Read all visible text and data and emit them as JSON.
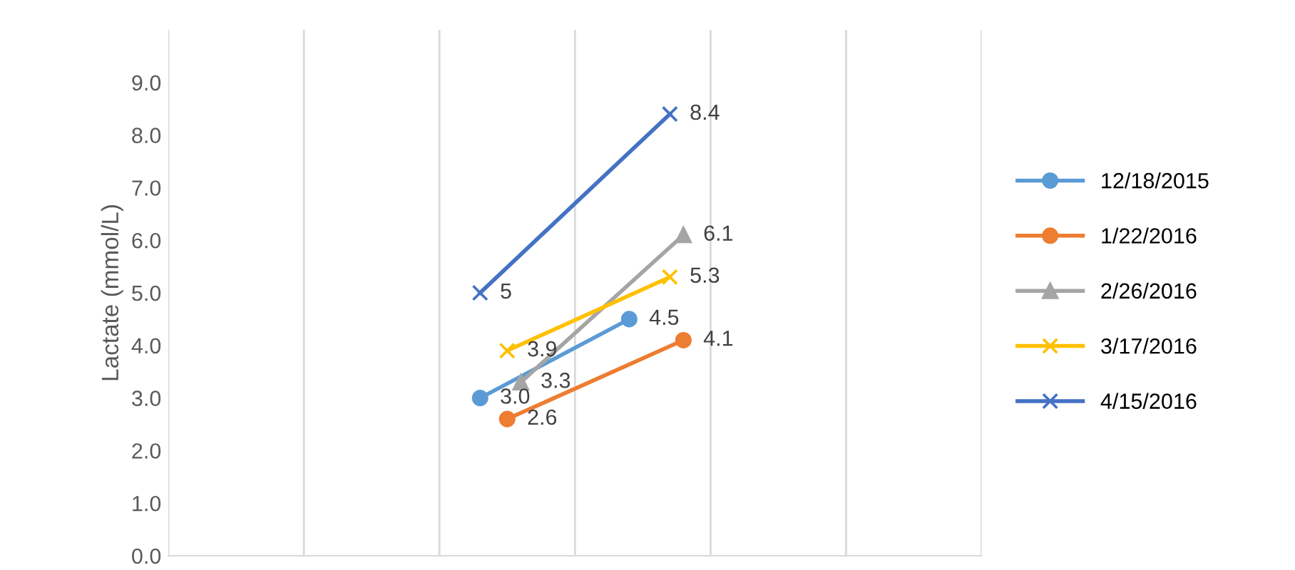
{
  "chart_data": {
    "type": "line",
    "ylabel": "Lactate (mmol/L)",
    "categories": [
      null,
      null,
      null,
      null,
      null,
      null,
      null,
      null,
      null,
      null,
      null,
      null,
      null,
      null,
      null,
      null,
      null,
      null,
      null,
      null,
      null,
      null,
      null,
      null,
      null,
      null,
      null,
      null,
      null,
      null,
      null,
      null,
      null,
      null,
      null,
      null,
      null,
      null,
      null,
      null,
      null,
      null,
      null,
      null,
      null,
      null,
      null,
      null,
      null,
      null,
      null,
      null,
      null,
      null,
      null,
      null,
      null,
      null,
      null,
      null,
      null
    ],
    "ylim": [
      0,
      10
    ],
    "yticks": [
      {
        "value": 0,
        "label": "0.0"
      },
      {
        "value": 1,
        "label": "1.0"
      },
      {
        "value": 2,
        "label": "2.0"
      },
      {
        "value": 3,
        "label": "3.0"
      },
      {
        "value": 4,
        "label": "4.0"
      },
      {
        "value": 5,
        "label": "5.0"
      },
      {
        "value": 6,
        "label": "6.0"
      },
      {
        "value": 7,
        "label": "7.0"
      },
      {
        "value": 8,
        "label": "8.0"
      },
      {
        "value": 9,
        "label": "9.0"
      }
    ],
    "grid": "x",
    "legend": "right",
    "series": [
      {
        "name": "12/18/2015",
        "color": "#5b9bd5",
        "marker": "circle",
        "values": [
          null,
          null,
          null,
          null,
          null,
          null,
          null,
          null,
          null,
          null,
          null,
          null,
          null,
          null,
          null,
          null,
          null,
          null,
          null,
          null,
          null,
          null,
          null,
          3.0,
          null,
          null,
          null,
          null,
          null,
          null,
          null,
          null,
          null,
          null,
          4.5,
          null,
          null,
          null,
          null,
          null,
          null,
          null,
          null,
          null,
          null,
          null,
          null,
          null,
          null,
          null,
          null,
          null,
          null,
          null,
          null,
          null,
          null,
          null,
          null,
          null,
          null
        ],
        "value_labels": [
          null,
          null,
          null,
          null,
          null,
          null,
          null,
          null,
          null,
          null,
          null,
          null,
          null,
          null,
          null,
          null,
          null,
          null,
          null,
          null,
          null,
          null,
          null,
          "3.0",
          null,
          null,
          null,
          null,
          null,
          null,
          null,
          null,
          null,
          null,
          "4.5",
          null,
          null,
          null,
          null,
          null,
          null,
          null,
          null,
          null,
          null,
          null,
          null,
          null,
          null,
          null,
          null,
          null,
          null,
          null,
          null,
          null,
          null,
          null,
          null,
          null,
          null
        ]
      },
      {
        "name": "1/22/2016",
        "color": "#ed7d31",
        "marker": "circle",
        "values": [
          null,
          null,
          null,
          null,
          null,
          null,
          null,
          null,
          null,
          null,
          null,
          null,
          null,
          null,
          null,
          null,
          null,
          null,
          null,
          null,
          null,
          null,
          null,
          null,
          null,
          2.6,
          null,
          null,
          null,
          null,
          null,
          null,
          null,
          null,
          null,
          null,
          null,
          null,
          4.1,
          null,
          null,
          null,
          null,
          null,
          null,
          null,
          null,
          null,
          null,
          null,
          null,
          null,
          null,
          null,
          null,
          null,
          null,
          null,
          null,
          null,
          null
        ],
        "value_labels": [
          null,
          null,
          null,
          null,
          null,
          null,
          null,
          null,
          null,
          null,
          null,
          null,
          null,
          null,
          null,
          null,
          null,
          null,
          null,
          null,
          null,
          null,
          null,
          null,
          null,
          "2.6",
          null,
          null,
          null,
          null,
          null,
          null,
          null,
          null,
          null,
          null,
          null,
          null,
          "4.1",
          null,
          null,
          null,
          null,
          null,
          null,
          null,
          null,
          null,
          null,
          null,
          null,
          null,
          null,
          null,
          null,
          null,
          null,
          null,
          null,
          null,
          null
        ]
      },
      {
        "name": "2/26/2016",
        "color": "#a5a5a5",
        "marker": "triangle",
        "values": [
          null,
          null,
          null,
          null,
          null,
          null,
          null,
          null,
          null,
          null,
          null,
          null,
          null,
          null,
          null,
          null,
          null,
          null,
          null,
          null,
          null,
          null,
          null,
          null,
          null,
          null,
          3.3,
          null,
          null,
          null,
          null,
          null,
          null,
          null,
          null,
          null,
          null,
          null,
          6.1,
          null,
          null,
          null,
          null,
          null,
          null,
          null,
          null,
          null,
          null,
          null,
          null,
          null,
          null,
          null,
          null,
          null,
          null,
          null,
          null,
          null,
          null
        ],
        "value_labels": [
          null,
          null,
          null,
          null,
          null,
          null,
          null,
          null,
          null,
          null,
          null,
          null,
          null,
          null,
          null,
          null,
          null,
          null,
          null,
          null,
          null,
          null,
          null,
          null,
          null,
          null,
          "3.3",
          null,
          null,
          null,
          null,
          null,
          null,
          null,
          null,
          null,
          null,
          null,
          "6.1",
          null,
          null,
          null,
          null,
          null,
          null,
          null,
          null,
          null,
          null,
          null,
          null,
          null,
          null,
          null,
          null,
          null,
          null,
          null,
          null,
          null,
          null
        ]
      },
      {
        "name": "3/17/2016",
        "color": "#ffc000",
        "marker": "cross",
        "values": [
          null,
          null,
          null,
          null,
          null,
          null,
          null,
          null,
          null,
          null,
          null,
          null,
          null,
          null,
          null,
          null,
          null,
          null,
          null,
          null,
          null,
          null,
          null,
          null,
          null,
          3.9,
          null,
          null,
          null,
          null,
          null,
          null,
          null,
          null,
          null,
          null,
          null,
          5.3,
          null,
          null,
          null,
          null,
          null,
          null,
          null,
          null,
          null,
          null,
          null,
          null,
          null,
          null,
          null,
          null,
          null,
          null,
          null,
          null,
          null,
          null,
          null
        ],
        "value_labels": [
          null,
          null,
          null,
          null,
          null,
          null,
          null,
          null,
          null,
          null,
          null,
          null,
          null,
          null,
          null,
          null,
          null,
          null,
          null,
          null,
          null,
          null,
          null,
          null,
          null,
          "3.9",
          null,
          null,
          null,
          null,
          null,
          null,
          null,
          null,
          null,
          null,
          null,
          "5.3",
          null,
          null,
          null,
          null,
          null,
          null,
          null,
          null,
          null,
          null,
          null,
          null,
          null,
          null,
          null,
          null,
          null,
          null,
          null,
          null,
          null,
          null,
          null
        ]
      },
      {
        "name": "4/15/2016",
        "color": "#4472c4",
        "marker": "cross",
        "values": [
          null,
          null,
          null,
          null,
          null,
          null,
          null,
          null,
          null,
          null,
          null,
          null,
          null,
          null,
          null,
          null,
          null,
          null,
          null,
          null,
          null,
          null,
          null,
          5,
          null,
          null,
          null,
          null,
          null,
          null,
          null,
          null,
          null,
          null,
          null,
          null,
          null,
          8.4,
          null,
          null,
          null,
          null,
          null,
          null,
          null,
          null,
          null,
          null,
          null,
          null,
          null,
          null,
          null,
          null,
          null,
          null,
          null,
          null,
          null,
          null,
          null
        ],
        "value_labels": [
          null,
          null,
          null,
          null,
          null,
          null,
          null,
          null,
          null,
          null,
          null,
          null,
          null,
          null,
          null,
          null,
          null,
          null,
          null,
          null,
          null,
          null,
          null,
          "5",
          null,
          null,
          null,
          null,
          null,
          null,
          null,
          null,
          null,
          null,
          null,
          null,
          null,
          "8.4",
          null,
          null,
          null,
          null,
          null,
          null,
          null,
          null,
          null,
          null,
          null,
          null,
          null,
          null,
          null,
          null,
          null,
          null,
          null,
          null,
          null,
          null,
          null
        ]
      }
    ]
  }
}
